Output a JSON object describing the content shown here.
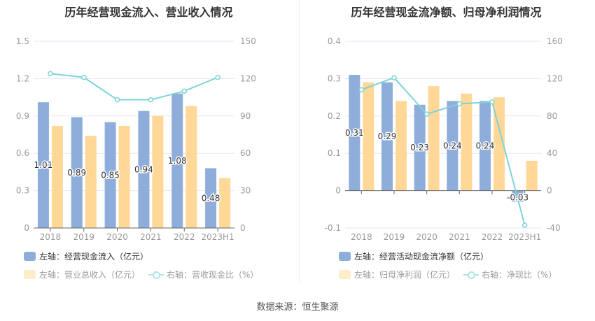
{
  "colors": {
    "blue": "#8eadda",
    "orange": "#ffd898",
    "line": "#7fd3d6",
    "grid": "#e3e8f3",
    "axis_text": "#999",
    "label": "#333"
  },
  "chart_data": [
    {
      "type": "bar+line",
      "title": "历年经营现金流入、营业收入情况",
      "categories": [
        "2018",
        "2019",
        "2020",
        "2021",
        "2022",
        "2023H1"
      ],
      "left_axis": {
        "ylim": [
          0,
          1.5
        ],
        "ticks": [
          "0",
          "0.3",
          "0.6",
          "0.9",
          "1.2",
          "1.5"
        ]
      },
      "right_axis": {
        "ylim": [
          0,
          150
        ],
        "ticks": [
          "0",
          "30",
          "60",
          "90",
          "120",
          "150"
        ]
      },
      "series": [
        {
          "name": "左轴：经营现金流入（亿元）",
          "type": "bar",
          "axis": "left",
          "values": [
            1.01,
            0.89,
            0.85,
            0.94,
            1.08,
            0.48
          ],
          "labels": [
            "1.01",
            "0.89",
            "0.85",
            "0.94",
            "1.08",
            "0.48"
          ]
        },
        {
          "name": "左轴：营业总收入（亿元）",
          "type": "bar",
          "axis": "left",
          "values": [
            0.82,
            0.74,
            0.82,
            0.9,
            0.98,
            0.4
          ]
        },
        {
          "name": "右轴：营收现金比（%）",
          "type": "line",
          "axis": "right",
          "values": [
            124,
            121,
            103,
            103,
            110,
            121
          ]
        }
      ],
      "legend_position": "bottom"
    },
    {
      "type": "bar+line",
      "title": "历年经营现金流净额、归母净利润情况",
      "categories": [
        "2018",
        "2019",
        "2020",
        "2021",
        "2022",
        "2023H1"
      ],
      "left_axis": {
        "ylim": [
          -0.1,
          0.4
        ],
        "ticks": [
          "-0.1",
          "0",
          "0.1",
          "0.2",
          "0.3",
          "0.4"
        ]
      },
      "right_axis": {
        "ylim": [
          -40,
          160
        ],
        "ticks": [
          "-40",
          "0",
          "40",
          "80",
          "120",
          "160"
        ]
      },
      "series": [
        {
          "name": "左轴：经营活动现金流净额（亿元）",
          "type": "bar",
          "axis": "left",
          "values": [
            0.31,
            0.29,
            0.23,
            0.24,
            0.24,
            -0.03
          ],
          "labels": [
            "0.31",
            "0.29",
            "0.23",
            "0.24",
            "0.24",
            "-0.03"
          ]
        },
        {
          "name": "左轴：归母净利润（亿元）",
          "type": "bar",
          "axis": "left",
          "values": [
            0.29,
            0.24,
            0.28,
            0.26,
            0.25,
            0.08
          ]
        },
        {
          "name": "右轴：净现比（%）",
          "type": "line",
          "axis": "right",
          "values": [
            108,
            121,
            82,
            93,
            95,
            -37
          ]
        }
      ],
      "legend_position": "bottom"
    }
  ],
  "source": "数据来源：恒生聚源"
}
